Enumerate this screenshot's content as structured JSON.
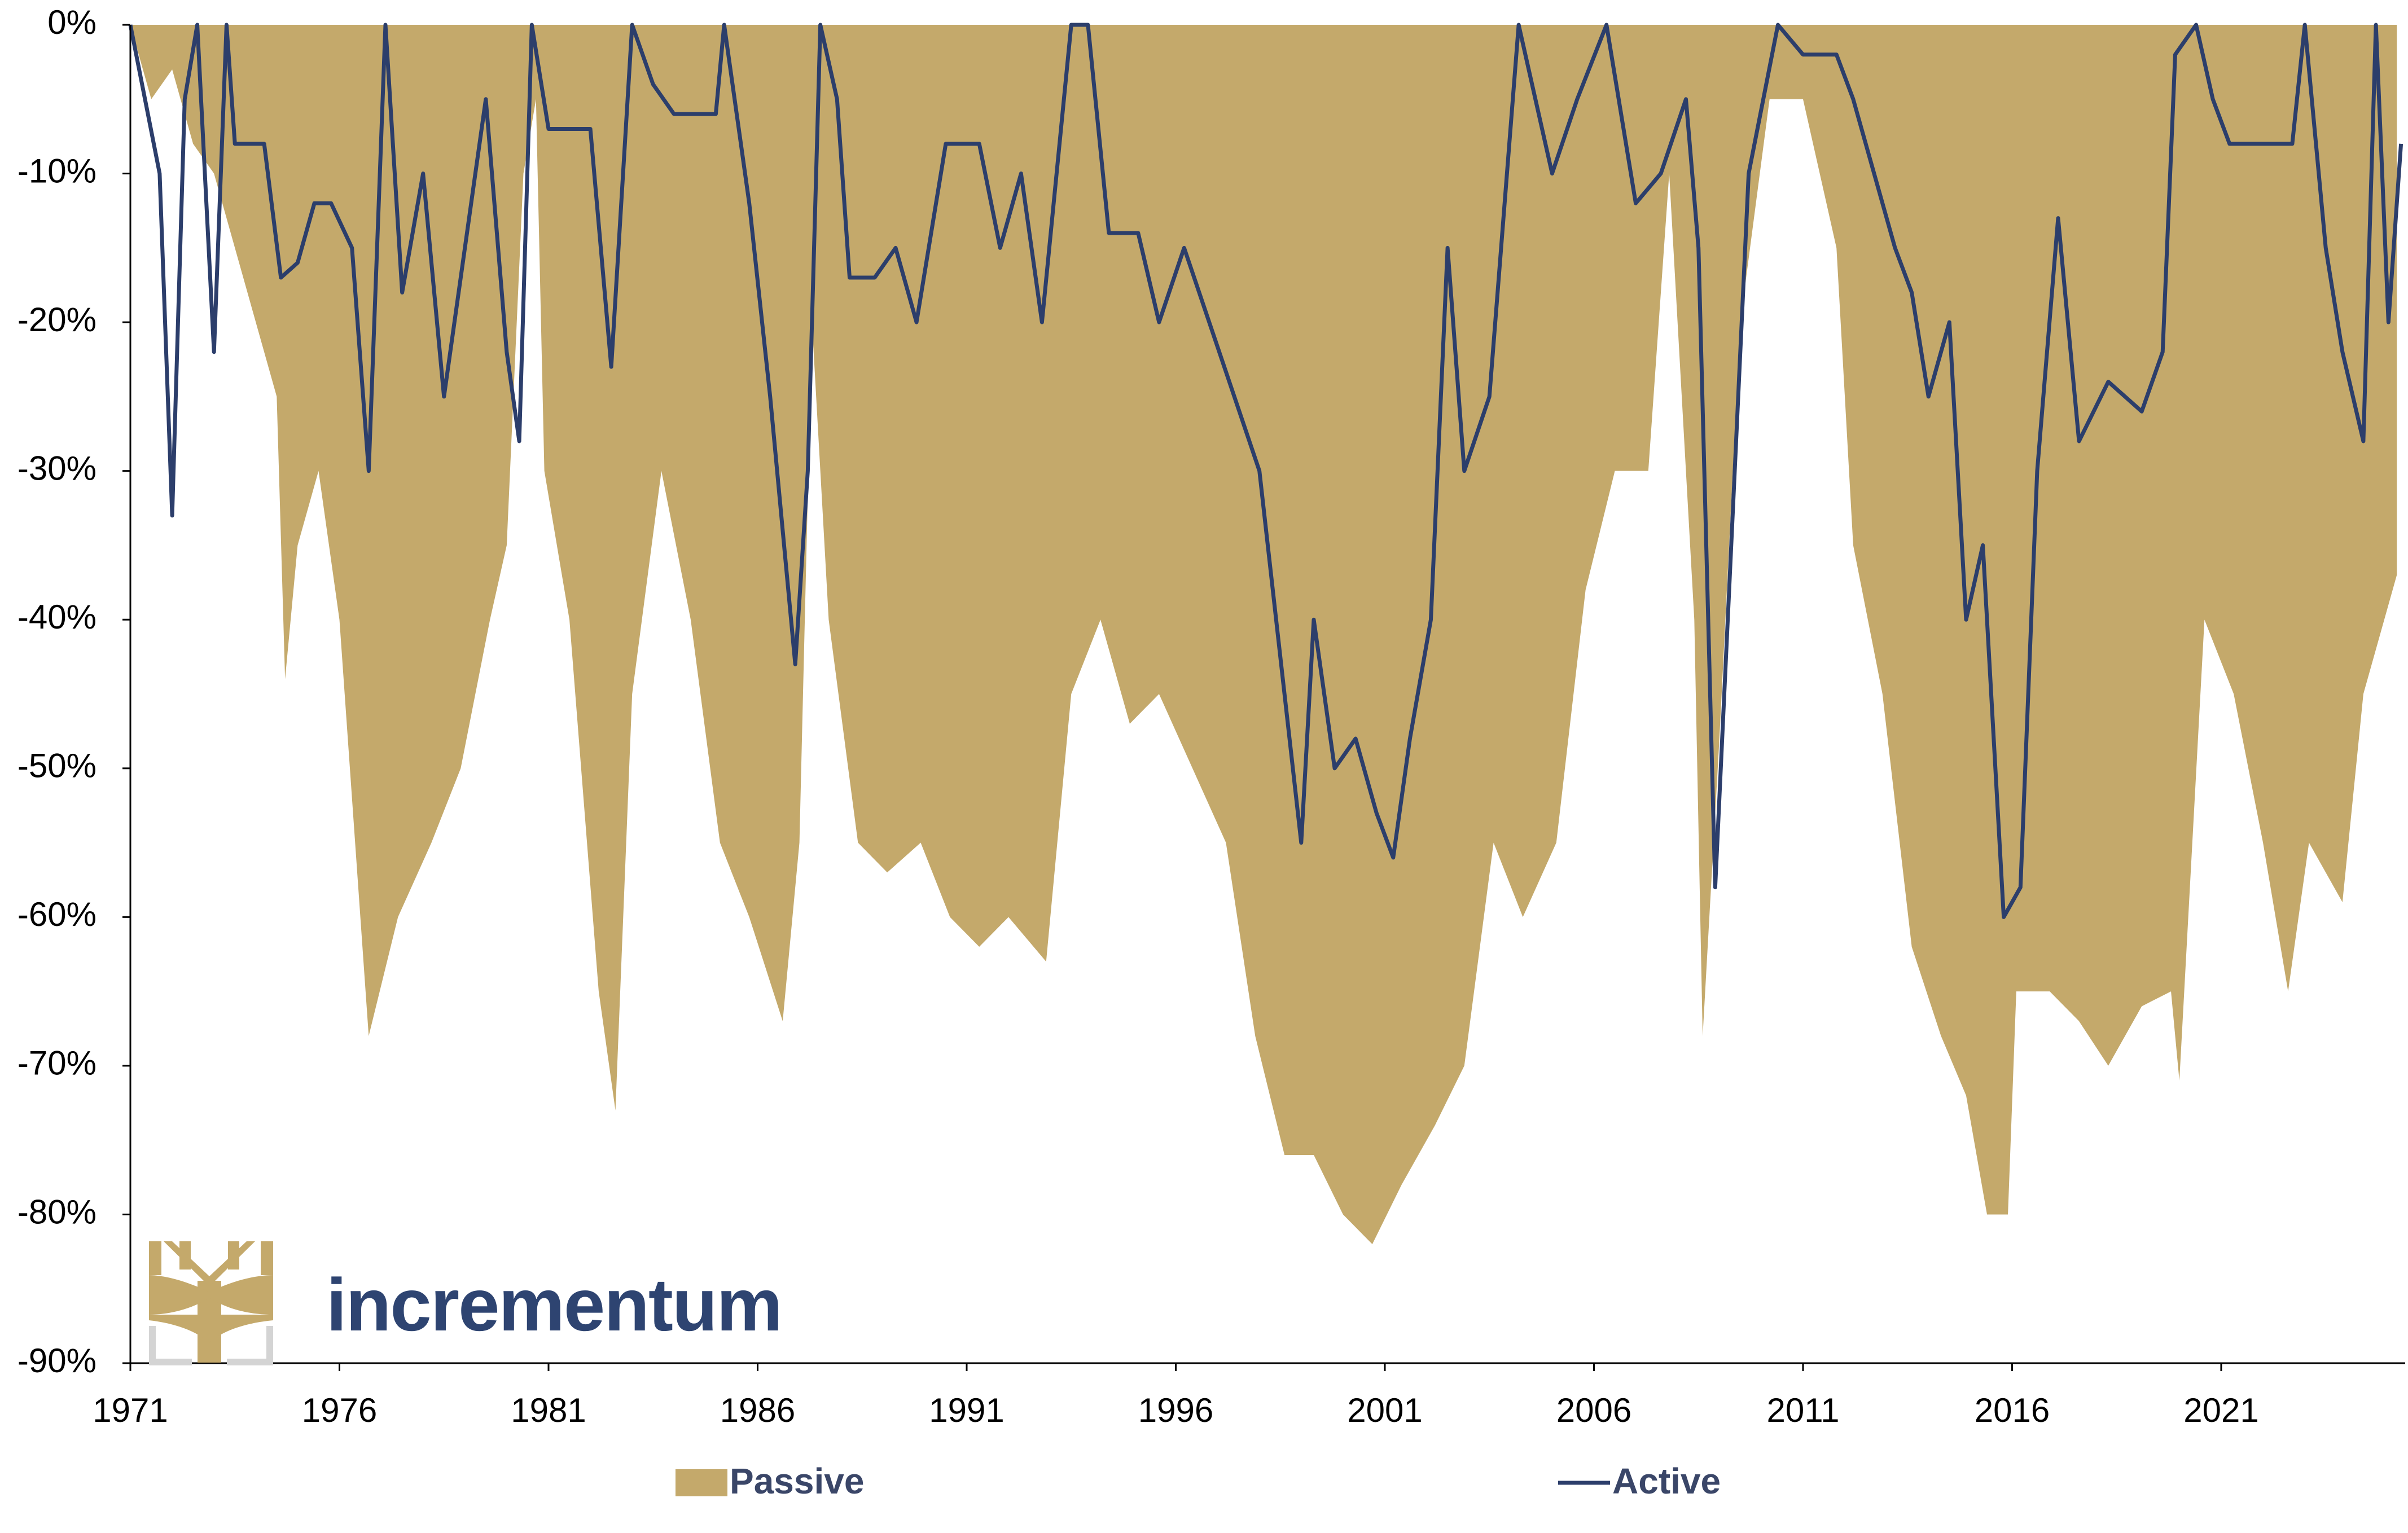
{
  "chart_data": {
    "type": "area-line",
    "watermark": "incrementum",
    "xlim": [
      1971,
      2025.4
    ],
    "xticks": [
      1971,
      1976,
      1981,
      1986,
      1991,
      1996,
      2001,
      2006,
      2011,
      2016,
      2021
    ],
    "ylim": [
      -90,
      0
    ],
    "yticks": [
      {
        "value": 0,
        "label": "0%"
      },
      {
        "value": -10,
        "label": "-10%"
      },
      {
        "value": -20,
        "label": "-20%"
      },
      {
        "value": -30,
        "label": "-30%"
      },
      {
        "value": -40,
        "label": "-40%"
      },
      {
        "value": -50,
        "label": "-50%"
      },
      {
        "value": -60,
        "label": "-60%"
      },
      {
        "value": -70,
        "label": "-70%"
      },
      {
        "value": -80,
        "label": "-80%"
      },
      {
        "value": -90,
        "label": "-90%"
      }
    ],
    "grid": false,
    "legend": "bottom",
    "series": [
      {
        "name": "Passive",
        "style": "area",
        "color": "#c4a96b",
        "x": [
          1971,
          1971.5,
          1972,
          1972.5,
          1973,
          1973.5,
          1974,
          1974.5,
          1974.7,
          1975,
          1975.5,
          1976,
          1976.7,
          1977.4,
          1978.2,
          1978.9,
          1979.6,
          1980,
          1980.4,
          1980.7,
          1980.9,
          1981.5,
          1982.2,
          1982.6,
          1983,
          1983.7,
          1984.4,
          1985.1,
          1985.8,
          1986.6,
          1987,
          1987.3,
          1987.7,
          1988.4,
          1989.1,
          1989.9,
          1990.6,
          1991.3,
          1992,
          1992.9,
          1993.5,
          1994.2,
          1994.9,
          1995.6,
          1996.4,
          1997.2,
          1997.9,
          1998.6,
          1999.3,
          2000,
          2000.7,
          2001.4,
          2002.2,
          2002.9,
          2003.6,
          2004.3,
          2005.1,
          2005.8,
          2006.5,
          2007.3,
          2007.8,
          2008.4,
          2008.6,
          2009,
          2009.5,
          2010.2,
          2011,
          2011.8,
          2012.2,
          2012.9,
          2013.6,
          2014.3,
          2014.9,
          2015.4,
          2015.9,
          2016.1,
          2016.9,
          2017.6,
          2018.3,
          2019.1,
          2019.8,
          2020,
          2020.6,
          2021.3,
          2022,
          2022.6,
          2023.1,
          2023.9,
          2024.4,
          2025.2
        ],
        "values": [
          0,
          -5,
          -3,
          -8,
          -10,
          -15,
          -20,
          -25,
          -44,
          -35,
          -30,
          -40,
          -68,
          -60,
          -55,
          -50,
          -40,
          -35,
          -10,
          -5,
          -30,
          -40,
          -65,
          -73,
          -45,
          -30,
          -40,
          -55,
          -60,
          -67,
          -55,
          -20,
          -40,
          -55,
          -57,
          -55,
          -60,
          -62,
          -60,
          -63,
          -45,
          -40,
          -47,
          -45,
          -50,
          -55,
          -68,
          -76,
          -76,
          -80,
          -82,
          -78,
          -74,
          -70,
          -55,
          -60,
          -55,
          -38,
          -30,
          -30,
          -10,
          -40,
          -68,
          -48,
          -20,
          -5,
          -5,
          -15,
          -35,
          -45,
          -62,
          -68,
          -72,
          -80,
          -80,
          -65,
          -65,
          -67,
          -70,
          -66,
          -65,
          -71,
          -40,
          -45,
          -55,
          -65,
          -55,
          -59,
          -45,
          -37
        ]
      },
      {
        "name": "Active",
        "style": "line",
        "color": "#2c3e6b",
        "x": [
          1971,
          1971.7,
          1972,
          1972.3,
          1972.6,
          1973,
          1973.3,
          1973.5,
          1974.2,
          1974.6,
          1975,
          1975.4,
          1975.8,
          1976.3,
          1976.7,
          1977.1,
          1977.5,
          1978,
          1978.5,
          1979,
          1979.5,
          1980,
          1980.3,
          1980.6,
          1981,
          1982,
          1982.5,
          1983,
          1983.5,
          1984,
          1985,
          1985.2,
          1985.8,
          1986.3,
          1986.9,
          1987.2,
          1987.5,
          1987.9,
          1988.2,
          1988.8,
          1989.3,
          1989.8,
          1990.5,
          1991.3,
          1991.8,
          1992.3,
          1992.8,
          1993.5,
          1993.9,
          1994.4,
          1995.1,
          1995.6,
          1996.2,
          1996.8,
          1997.4,
          1998,
          1998.6,
          1999,
          1999.3,
          1999.8,
          2000.3,
          2000.8,
          2001.2,
          2001.6,
          2002.1,
          2002.5,
          2002.9,
          2003.5,
          2004.2,
          2005,
          2005.6,
          2006.3,
          2007,
          2007.6,
          2008.2,
          2008.5,
          2008.9,
          2009.2,
          2009.7,
          2010.4,
          2011,
          2011.8,
          2012.2,
          2012.7,
          2013.2,
          2013.6,
          2014,
          2014.5,
          2014.9,
          2015.3,
          2015.8,
          2016.2,
          2016.6,
          2017.1,
          2017.6,
          2018.3,
          2019.1,
          2019.6,
          2019.9,
          2020.4,
          2020.8,
          2021.2,
          2022,
          2022.7,
          2023,
          2023.5,
          2023.9,
          2024.4,
          2024.7,
          2025,
          2025.3
        ],
        "values": [
          0,
          -10,
          -33,
          -5,
          0,
          -22,
          0,
          -8,
          -8,
          -17,
          -16,
          -12,
          -12,
          -15,
          -30,
          0,
          -18,
          -10,
          -25,
          -15,
          -5,
          -22,
          -28,
          0,
          -7,
          -7,
          -23,
          0,
          -4,
          -6,
          -6,
          0,
          -12,
          -25,
          -43,
          -30,
          0,
          -5,
          -17,
          -17,
          -15,
          -20,
          -8,
          -8,
          -15,
          -10,
          -20,
          0,
          0,
          -14,
          -14,
          -20,
          -15,
          -20,
          -25,
          -30,
          -45,
          -55,
          -40,
          -50,
          -48,
          -53,
          -56,
          -48,
          -40,
          -15,
          -30,
          -25,
          0,
          -10,
          -5,
          0,
          -12,
          -10,
          -5,
          -15,
          -58,
          -40,
          -10,
          0,
          -2,
          -2,
          -5,
          -10,
          -15,
          -18,
          -25,
          -20,
          -40,
          -35,
          -60,
          -58,
          -30,
          -13,
          -28,
          -24,
          -26,
          -22,
          -2,
          0,
          -5,
          -8,
          -8,
          -8,
          0,
          -15,
          -22,
          -28,
          0,
          -20,
          -8
        ]
      }
    ]
  }
}
